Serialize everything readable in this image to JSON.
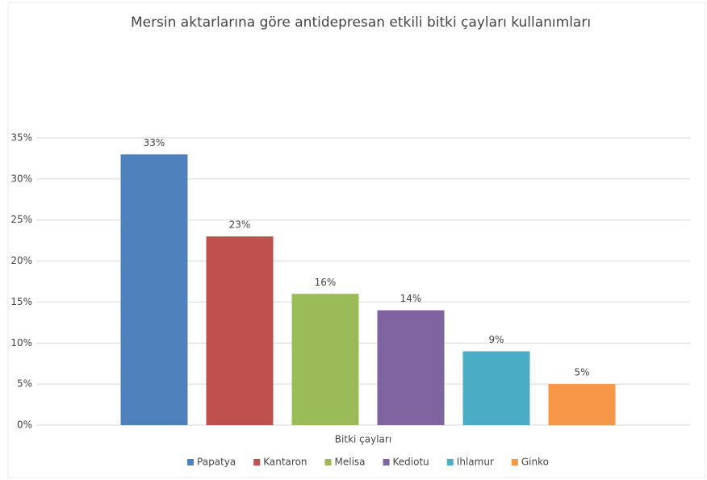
{
  "chart_data": {
    "type": "bar",
    "title": "Mersin aktarlarına göre antidepresan  etkili bitki çayları kullanımları",
    "categories": [
      "Bitki çayları"
    ],
    "series": [
      {
        "name": "Papatya",
        "color": "#4f81bd",
        "values": [
          33
        ],
        "value_labels": [
          "33%"
        ]
      },
      {
        "name": "Kantaron",
        "color": "#c0504d",
        "values": [
          23
        ],
        "value_labels": [
          "23%"
        ]
      },
      {
        "name": "Melisa",
        "color": "#9bbb59",
        "values": [
          16
        ],
        "value_labels": [
          "16%"
        ]
      },
      {
        "name": "Kediotu",
        "color": "#8064a2",
        "values": [
          14
        ],
        "value_labels": [
          "14%"
        ]
      },
      {
        "name": "Ihlamur",
        "color": "#4bacc6",
        "values": [
          9
        ],
        "value_labels": [
          "9%"
        ]
      },
      {
        "name": "Ginko",
        "color": "#f79646",
        "values": [
          5
        ],
        "value_labels": [
          "5%"
        ]
      }
    ],
    "ylim": [
      0,
      35
    ],
    "yticks": [
      {
        "value": 0,
        "label": "0%"
      },
      {
        "value": 5,
        "label": "5%"
      },
      {
        "value": 10,
        "label": "10%"
      },
      {
        "value": 15,
        "label": "15%"
      },
      {
        "value": 20,
        "label": "20%"
      },
      {
        "value": 25,
        "label": "25%"
      },
      {
        "value": 30,
        "label": "30%"
      },
      {
        "value": 35,
        "label": "35%"
      }
    ],
    "grid": true,
    "legend": "bottom"
  }
}
